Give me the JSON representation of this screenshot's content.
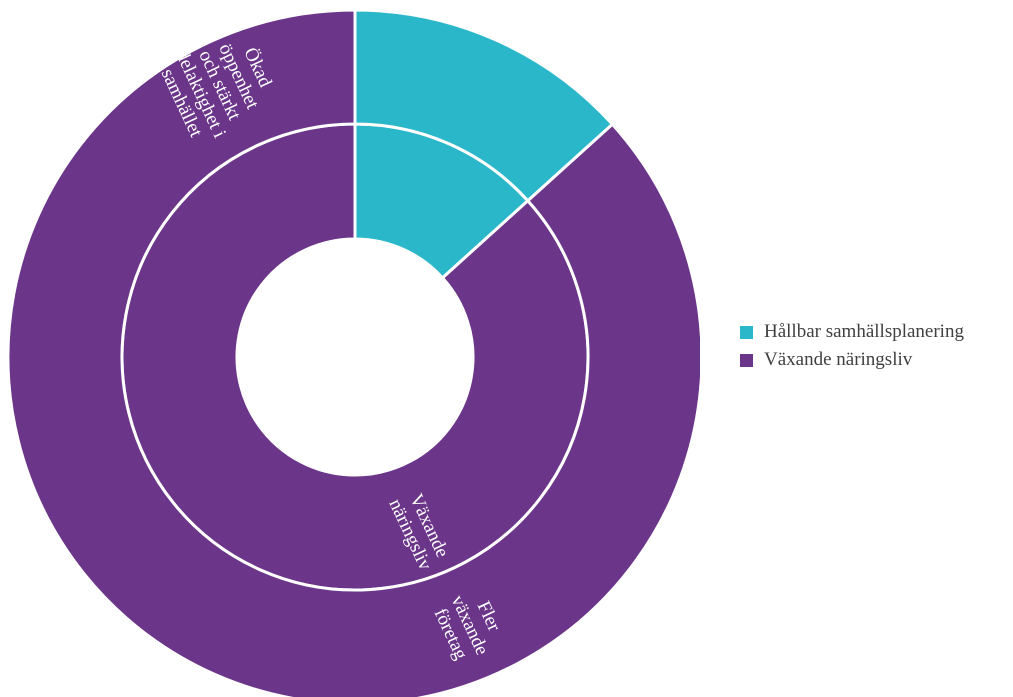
{
  "chart_data": {
    "type": "sunburst",
    "title": "",
    "colors": {
      "Hållbar samhällsplanering": "#2ab7ca",
      "Växande näringsliv": "#6b358a",
      "separator": "#ffffff"
    },
    "rings": [
      {
        "level": "inner",
        "segments": [
          {
            "label": "",
            "category": "Hållbar samhällsplanering",
            "value": 0.133
          },
          {
            "label": "Växande näringsliv",
            "category": "Växande näringsliv",
            "value": 0.867
          }
        ]
      },
      {
        "level": "outer",
        "segments": [
          {
            "label": "Ökad öppenhet och stärkt delaktighet i samhället",
            "category": "Hållbar samhällsplanering",
            "value": 0.133
          },
          {
            "label": "Fler växande företag",
            "category": "Växande näringsliv",
            "value": 0.867
          }
        ]
      }
    ],
    "label_lines": {
      "inner_1": [
        "Växande",
        "näringsliv"
      ],
      "outer_0": [
        "Ökad",
        "öppenhet",
        "och stärkt",
        "delaktighet i",
        "samhället"
      ],
      "outer_1": [
        "Fler",
        "växande",
        "företag"
      ]
    },
    "legend": {
      "position": "right",
      "items": [
        {
          "label": "Hållbar samhällsplanering",
          "color": "#2ab7ca"
        },
        {
          "label": "Växande näringsliv",
          "color": "#6b358a"
        }
      ]
    }
  }
}
